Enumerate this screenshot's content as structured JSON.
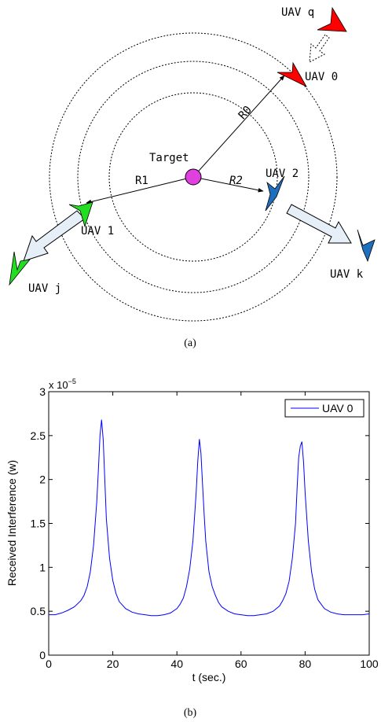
{
  "diagram": {
    "target_label": "Target",
    "radius_labels": {
      "r0": "R0",
      "r1": "R1",
      "r2": "R2"
    },
    "uav_labels": {
      "uav_q": "UAV q",
      "uav_0": "UAV 0",
      "uav_1": "UAV 1",
      "uav_2": "UAV 2",
      "uav_j": "UAV j",
      "uav_k": "UAV k"
    },
    "caption": "(a)",
    "colors": {
      "red_uav": "#ff0000",
      "green_uav": "#22dd22",
      "blue_uav": "#1f6fbf",
      "target": "#e040e0",
      "motion_arrow_fill": "#e6eef8"
    }
  },
  "chart_caption": "(b)",
  "chart_data": {
    "type": "line",
    "title": "",
    "exponent_label": "x 10",
    "exponent_power": "−5",
    "xlabel": "t (sec.)",
    "ylabel": "Received Interference (w)",
    "xlim": [
      0,
      100
    ],
    "ylim": [
      0,
      3
    ],
    "xticks": [
      0,
      20,
      40,
      60,
      80,
      100
    ],
    "yticks": [
      0,
      0.5,
      1,
      1.5,
      2,
      2.5,
      3
    ],
    "ytick_labels": [
      "0",
      "0.5",
      "1",
      "1.5",
      "2",
      "2.5",
      "3"
    ],
    "legend_position": "top-right",
    "series": [
      {
        "name": "UAV 0",
        "color": "#0000ff",
        "x": [
          0,
          2,
          4,
          6,
          8,
          10,
          11,
          12,
          13,
          14,
          15,
          15.5,
          16,
          16.5,
          17,
          17.5,
          18,
          19,
          20,
          21,
          22,
          24,
          26,
          28,
          30,
          32,
          33,
          34,
          36,
          38,
          40,
          41,
          42,
          43,
          44,
          45,
          46,
          46.5,
          47,
          47.5,
          48,
          48.5,
          49,
          50,
          51,
          52,
          53,
          54,
          56,
          58,
          60,
          62,
          64,
          66,
          68,
          70,
          72,
          73,
          74,
          75,
          76,
          77,
          77.5,
          78,
          78.5,
          79,
          79.5,
          80,
          81,
          82,
          83,
          84,
          86,
          88,
          90,
          92,
          94,
          96,
          98,
          100
        ],
        "y": [
          0.46,
          0.46,
          0.48,
          0.51,
          0.55,
          0.62,
          0.68,
          0.78,
          0.95,
          1.25,
          1.75,
          2.1,
          2.5,
          2.68,
          2.45,
          2.0,
          1.55,
          1.1,
          0.85,
          0.7,
          0.61,
          0.53,
          0.49,
          0.47,
          0.46,
          0.45,
          0.45,
          0.45,
          0.46,
          0.48,
          0.53,
          0.58,
          0.65,
          0.78,
          0.98,
          1.3,
          1.85,
          2.2,
          2.46,
          2.3,
          1.95,
          1.6,
          1.3,
          0.95,
          0.78,
          0.68,
          0.6,
          0.55,
          0.5,
          0.47,
          0.46,
          0.45,
          0.45,
          0.46,
          0.47,
          0.5,
          0.56,
          0.62,
          0.7,
          0.84,
          1.1,
          1.5,
          1.9,
          2.25,
          2.38,
          2.43,
          2.2,
          1.85,
          1.3,
          0.95,
          0.75,
          0.63,
          0.53,
          0.49,
          0.47,
          0.46,
          0.46,
          0.46,
          0.46,
          0.47
        ]
      }
    ]
  }
}
